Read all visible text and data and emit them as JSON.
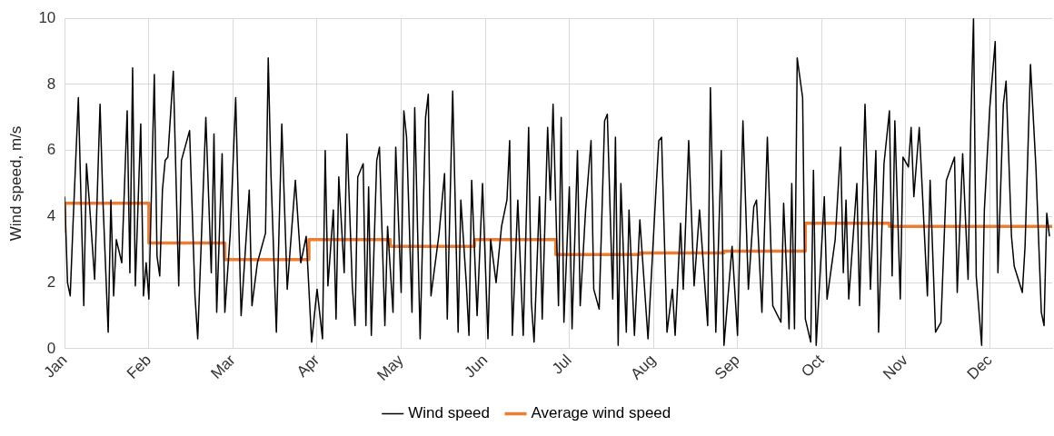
{
  "chart_data": {
    "type": "line",
    "ylabel": "Wind speed, m/s",
    "xlim": [
      "--01-01",
      "--12-31"
    ],
    "ylim": [
      0,
      10
    ],
    "xticks": [
      {
        "value": "--01-01",
        "label": "Jan"
      },
      {
        "value": "--02-01",
        "label": "Feb"
      },
      {
        "value": "--03-04",
        "label": "Mar"
      },
      {
        "value": "--04-04",
        "label": "Apr"
      },
      {
        "value": "--05-05",
        "label": "May"
      },
      {
        "value": "--06-05",
        "label": "Jun"
      },
      {
        "value": "--07-06",
        "label": "Jul"
      },
      {
        "value": "--08-06",
        "label": "Aug"
      },
      {
        "value": "--09-06",
        "label": "Sep"
      },
      {
        "value": "--10-07",
        "label": "Oct"
      },
      {
        "value": "--11-07",
        "label": "Nov"
      },
      {
        "value": "--12-08",
        "label": "Dec"
      }
    ],
    "yticks": [
      0,
      2,
      4,
      6,
      8,
      10
    ],
    "grid": true,
    "legend": "bottom",
    "marker": "none",
    "line_style": "solid",
    "series": [
      {
        "name": "Wind speed",
        "type": "line",
        "color": "#000000",
        "x": [
          "--01-01",
          "--01-02",
          "--01-03",
          "--01-04",
          "--01-06",
          "--01-08",
          "--01-09",
          "--01-10",
          "--01-12",
          "--01-14",
          "--01-15",
          "--01-17",
          "--01-18",
          "--01-19",
          "--01-20",
          "--01-22",
          "--01-24",
          "--01-25",
          "--01-26",
          "--01-27",
          "--01-29",
          "--01-30",
          "--01-31",
          "--02-01",
          "--02-03",
          "--02-04",
          "--02-05",
          "--02-06",
          "--02-07",
          "--02-08",
          "--02-10",
          "--02-12",
          "--02-13",
          "--02-16",
          "--02-18",
          "--02-19",
          "--02-22",
          "--02-24",
          "--02-25",
          "--02-26",
          "--02-28",
          "--03-01",
          "--03-03",
          "--03-05",
          "--03-07",
          "--03-10",
          "--03-11",
          "--03-13",
          "--03-16",
          "--03-17",
          "--03-18",
          "--03-20",
          "--03-22",
          "--03-24",
          "--03-27",
          "--03-29",
          "--03-31",
          "--04-02",
          "--04-04",
          "--04-06",
          "--04-07",
          "--04-08",
          "--04-10",
          "--04-11",
          "--04-12",
          "--04-14",
          "--04-15",
          "--04-17",
          "--04-18",
          "--04-19",
          "--04-21",
          "--04-22",
          "--04-23",
          "--04-24",
          "--04-26",
          "--04-27",
          "--04-29",
          "--04-30",
          "--05-02",
          "--05-03",
          "--05-05",
          "--05-06",
          "--05-07",
          "--05-09",
          "--05-10",
          "--05-12",
          "--05-14",
          "--05-15",
          "--05-16",
          "--05-19",
          "--05-21",
          "--05-22",
          "--05-24",
          "--05-26",
          "--05-27",
          "--05-29",
          "--05-30",
          "--05-31",
          "--06-02",
          "--06-04",
          "--06-06",
          "--06-07",
          "--06-09",
          "--06-11",
          "--06-13",
          "--06-14",
          "--06-15",
          "--06-17",
          "--06-19",
          "--06-21",
          "--06-22",
          "--06-23",
          "--06-25",
          "--06-26",
          "--06-28",
          "--06-29",
          "--06-30",
          "--07-02",
          "--07-03",
          "--07-04",
          "--07-06",
          "--07-07",
          "--07-09",
          "--07-10",
          "--07-12",
          "--07-14",
          "--07-15",
          "--07-17",
          "--07-19",
          "--07-20",
          "--07-22",
          "--07-23",
          "--07-24",
          "--07-25",
          "--07-27",
          "--07-28",
          "--07-30",
          "--08-01",
          "--08-04",
          "--08-07",
          "--08-08",
          "--08-09",
          "--08-11",
          "--08-13",
          "--08-14",
          "--08-16",
          "--08-17",
          "--08-19",
          "--08-21",
          "--08-23",
          "--08-26",
          "--08-27",
          "--08-29",
          "--08-31",
          "--09-01",
          "--09-04",
          "--09-06",
          "--09-08",
          "--09-10",
          "--09-12",
          "--09-13",
          "--09-15",
          "--09-17",
          "--09-19",
          "--09-22",
          "--09-23",
          "--09-25",
          "--09-26",
          "--09-27",
          "--09-28",
          "--09-30",
          "--10-01",
          "--10-03",
          "--10-04",
          "--10-05",
          "--10-08",
          "--10-09",
          "--10-12",
          "--10-14",
          "--10-15",
          "--10-16",
          "--10-17",
          "--10-20",
          "--10-21",
          "--10-23",
          "--10-25",
          "--10-27",
          "--10-28",
          "--10-30",
          "--11-01",
          "--11-02",
          "--11-03",
          "--11-05",
          "--11-06",
          "--11-08",
          "--11-09",
          "--11-10",
          "--11-12",
          "--11-15",
          "--11-16",
          "--11-18",
          "--11-20",
          "--11-22",
          "--11-25",
          "--11-26",
          "--11-28",
          "--11-30",
          "--12-01",
          "--12-02",
          "--12-03",
          "--12-05",
          "--12-06",
          "--12-08",
          "--12-10",
          "--12-11",
          "--12-13",
          "--12-14",
          "--12-16",
          "--12-17",
          "--12-20",
          "--12-21",
          "--12-23",
          "--12-25",
          "--12-27",
          "--12-28",
          "--12-29",
          "--12-30"
        ],
        "values": [
          4.6,
          2.0,
          1.6,
          3.7,
          7.6,
          1.3,
          5.6,
          4.5,
          2.1,
          7.4,
          4.6,
          0.5,
          4.5,
          1.6,
          3.3,
          2.6,
          7.2,
          2.3,
          8.5,
          1.9,
          6.8,
          1.6,
          2.6,
          1.5,
          8.3,
          2.8,
          2.2,
          4.8,
          5.7,
          5.8,
          8.4,
          1.9,
          5.7,
          6.6,
          1.6,
          0.3,
          7.0,
          2.3,
          6.5,
          1.1,
          5.9,
          1.1,
          3.5,
          7.6,
          1.0,
          4.8,
          1.3,
          2.6,
          3.5,
          8.8,
          5.3,
          0.5,
          6.8,
          1.8,
          5.1,
          2.6,
          3.4,
          0.2,
          1.8,
          0.3,
          6.0,
          1.9,
          4.2,
          0.9,
          5.2,
          2.3,
          6.5,
          1.9,
          0.7,
          5.2,
          5.6,
          0.7,
          4.9,
          0.4,
          5.7,
          6.1,
          0.7,
          3.7,
          1.1,
          6.1,
          1.7,
          7.2,
          6.4,
          1.1,
          7.3,
          0.3,
          7.0,
          7.7,
          1.6,
          3.5,
          5.3,
          0.9,
          7.8,
          0.5,
          4.5,
          2.0,
          0.4,
          5.1,
          1.0,
          5.0,
          0.3,
          3.3,
          2.0,
          3.7,
          4.5,
          6.3,
          0.4,
          4.5,
          0.4,
          6.7,
          1.4,
          0.2,
          4.6,
          0.9,
          6.7,
          4.5,
          7.4,
          1.3,
          7.0,
          0.8,
          4.9,
          0.6,
          6.0,
          1.3,
          4.2,
          6.3,
          1.8,
          1.2,
          6.9,
          7.1,
          1.5,
          6.4,
          0.1,
          5.0,
          0.5,
          4.2,
          0.4,
          3.9,
          0.3,
          4.9,
          6.3,
          6.4,
          0.5,
          1.8,
          0.4,
          3.8,
          1.8,
          6.3,
          1.9,
          4.2,
          0.7,
          7.9,
          0.5,
          6.0,
          0.1,
          3.1,
          0.4,
          6.9,
          1.8,
          4.3,
          4.5,
          1.1,
          6.4,
          1.3,
          0.8,
          4.4,
          0.6,
          5.0,
          0.6,
          8.8,
          7.6,
          0.9,
          0.2,
          5.4,
          0.1,
          4.6,
          1.5,
          3.3,
          6.1,
          2.3,
          4.5,
          1.5,
          5.0,
          1.3,
          7.4,
          1.8,
          6.0,
          0.5,
          5.6,
          7.2,
          2.2,
          6.9,
          1.5,
          5.8,
          5.5,
          6.7,
          4.6,
          6.7,
          1.6,
          5.1,
          0.5,
          0.8,
          5.1,
          5.8,
          1.7,
          5.9,
          2.1,
          6.8,
          10,
          2.2,
          0.1,
          4.2,
          7.3,
          9.3,
          2.3,
          7.4,
          8.1,
          3.4,
          2.5,
          1.7,
          3.1,
          8.6,
          5.5,
          1.1,
          0.7,
          4.1,
          3.4
        ]
      },
      {
        "name": "Average wind speed",
        "type": "step",
        "color": "#ed7d31",
        "x": [
          "--01-01",
          "--02-01",
          "--03-01",
          "--04-01",
          "--05-01",
          "--06-01",
          "--07-01",
          "--08-01",
          "--09-01",
          "--10-01",
          "--11-01",
          "--12-01",
          "--12-31"
        ],
        "values": [
          3.5,
          4.4,
          3.2,
          2.7,
          3.3,
          3.1,
          3.3,
          2.85,
          2.9,
          2.95,
          3.8,
          3.7,
          3.7
        ]
      }
    ]
  }
}
